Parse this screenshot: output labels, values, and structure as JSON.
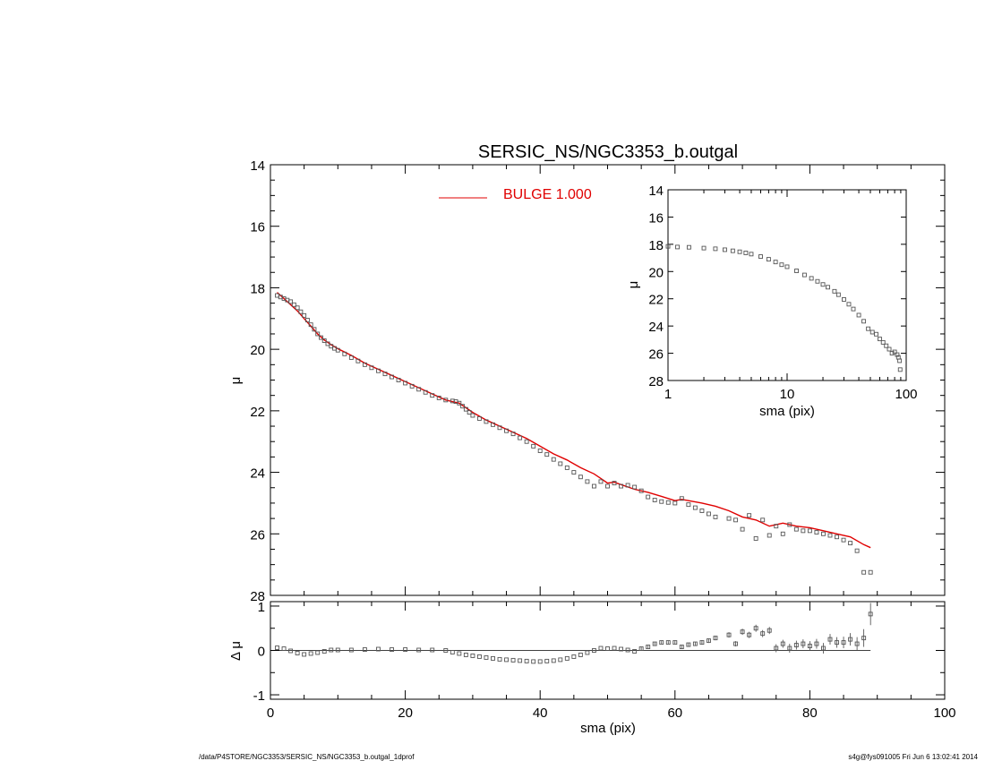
{
  "footer": {
    "path": "/data/P4STORE/NGC3353/SERSIC_NS/NGC3353_b.outgal_1dprof",
    "stamp": "s4g@fys091005  Fri Jun  6 13:02:41 2014"
  },
  "chart_data": [
    {
      "id": "main",
      "type": "scatter",
      "title": "SERSIC_NS/NGC3353_b.outgal",
      "xlabel": "",
      "ylabel": "μ",
      "xlim": [
        0,
        100
      ],
      "ylim": [
        28,
        14
      ],
      "yticks": [
        "14",
        "16",
        "18",
        "20",
        "22",
        "24",
        "26",
        "28"
      ],
      "legend": {
        "entries": [
          "BULGE  1.000"
        ],
        "placement": "top-center"
      },
      "colors": {
        "data": "#555555",
        "model": "#e00000"
      },
      "series": [
        {
          "name": "data",
          "style": "square-markers",
          "x": [
            1,
            1.5,
            2,
            2.5,
            3,
            3.5,
            4,
            4.5,
            5,
            5.5,
            6,
            6.5,
            7,
            7.5,
            8,
            8.5,
            9,
            9.5,
            10,
            11,
            12,
            13,
            14,
            15,
            16,
            17,
            18,
            19,
            20,
            21,
            22,
            23,
            24,
            25,
            26,
            27,
            27.5,
            28,
            28.5,
            29,
            29.5,
            30,
            31,
            32,
            33,
            34,
            35,
            36,
            37,
            38,
            39,
            40,
            41,
            42,
            43,
            44,
            45,
            46,
            47,
            48,
            49,
            50,
            51,
            52,
            53,
            54,
            55,
            56,
            57,
            58,
            59,
            60,
            61,
            62,
            63,
            64,
            65,
            66,
            68,
            69,
            70,
            71,
            72,
            73,
            74,
            75,
            76,
            77,
            78,
            79,
            80,
            81,
            82,
            83,
            84,
            85,
            86,
            87,
            88,
            89
          ],
          "y": [
            18.25,
            18.3,
            18.35,
            18.4,
            18.45,
            18.55,
            18.65,
            18.78,
            18.9,
            19.05,
            19.2,
            19.35,
            19.5,
            19.62,
            19.72,
            19.82,
            19.9,
            19.97,
            20.03,
            20.15,
            20.27,
            20.38,
            20.5,
            20.6,
            20.7,
            20.8,
            20.9,
            21.0,
            21.1,
            21.2,
            21.3,
            21.4,
            21.5,
            21.58,
            21.65,
            21.68,
            21.7,
            21.75,
            21.85,
            21.95,
            22.05,
            22.15,
            22.25,
            22.35,
            22.45,
            22.55,
            22.65,
            22.75,
            22.88,
            23.0,
            23.15,
            23.3,
            23.42,
            23.58,
            23.72,
            23.85,
            24.0,
            24.15,
            24.3,
            24.45,
            24.3,
            24.45,
            24.35,
            24.45,
            24.42,
            24.48,
            24.6,
            24.8,
            24.9,
            24.95,
            24.98,
            25.0,
            24.85,
            25.05,
            25.15,
            25.25,
            25.35,
            25.45,
            25.5,
            25.55,
            25.85,
            25.4,
            26.15,
            25.55,
            26.05,
            25.75,
            26.0,
            25.7,
            25.85,
            25.9,
            25.9,
            25.95,
            26.0,
            26.05,
            26.1,
            26.2,
            26.3,
            26.55,
            27.25,
            27.25
          ]
        },
        {
          "name": "BULGE  1.000",
          "style": "line",
          "x": [
            1,
            2,
            3,
            4,
            5,
            6,
            7,
            8,
            9,
            10,
            12,
            14,
            16,
            18,
            20,
            22,
            24,
            26,
            28,
            30,
            32,
            34,
            36,
            38,
            40,
            42,
            44,
            46,
            48,
            49,
            50,
            51,
            52,
            54,
            56,
            58,
            60,
            61,
            62,
            64,
            66,
            68,
            70,
            72,
            74,
            76,
            78,
            80,
            82,
            84,
            86,
            88,
            89
          ],
          "y": [
            18.15,
            18.35,
            18.55,
            18.75,
            19.0,
            19.25,
            19.5,
            19.7,
            19.85,
            19.98,
            20.2,
            20.45,
            20.65,
            20.85,
            21.05,
            21.25,
            21.45,
            21.65,
            21.75,
            22.05,
            22.3,
            22.5,
            22.7,
            22.9,
            23.15,
            23.4,
            23.6,
            23.85,
            24.05,
            24.2,
            24.35,
            24.32,
            24.4,
            24.55,
            24.65,
            24.78,
            24.92,
            24.88,
            24.92,
            25.0,
            25.1,
            25.25,
            25.45,
            25.55,
            25.75,
            25.65,
            25.75,
            25.8,
            25.9,
            26.0,
            26.1,
            26.35,
            26.45
          ]
        }
      ]
    },
    {
      "id": "residual",
      "type": "scatter",
      "xlabel": "sma (pix)",
      "ylabel": "Δ μ",
      "xlim": [
        0,
        100
      ],
      "ylim": [
        -1.1,
        1.1
      ],
      "xticks": [
        "0",
        "20",
        "40",
        "60",
        "80",
        "100"
      ],
      "yticks": [
        "1",
        "0",
        "-1"
      ],
      "reference_line": 0,
      "series": [
        {
          "name": "residual",
          "style": "square-markers-with-errorbars",
          "x": [
            1,
            2,
            3,
            4,
            5,
            6,
            7,
            8,
            9,
            10,
            12,
            14,
            16,
            18,
            20,
            22,
            24,
            26,
            27,
            28,
            29,
            30,
            31,
            32,
            33,
            34,
            35,
            36,
            37,
            38,
            39,
            40,
            41,
            42,
            43,
            44,
            45,
            46,
            47,
            48,
            49,
            50,
            51,
            52,
            53,
            54,
            55,
            56,
            57,
            58,
            59,
            60,
            61,
            62,
            63,
            64,
            65,
            66,
            68,
            69,
            70,
            71,
            72,
            73,
            74,
            75,
            76,
            77,
            78,
            79,
            80,
            81,
            82,
            83,
            84,
            85,
            86,
            87,
            88,
            89
          ],
          "y": [
            0.06,
            0.04,
            -0.01,
            -0.06,
            -0.09,
            -0.07,
            -0.05,
            -0.02,
            0.01,
            0.01,
            0.01,
            0.02,
            0.03,
            0.02,
            0.02,
            0.01,
            0.01,
            0.0,
            -0.04,
            -0.07,
            -0.1,
            -0.12,
            -0.14,
            -0.16,
            -0.18,
            -0.2,
            -0.21,
            -0.22,
            -0.23,
            -0.24,
            -0.25,
            -0.25,
            -0.24,
            -0.23,
            -0.21,
            -0.18,
            -0.14,
            -0.1,
            -0.05,
            0.0,
            0.05,
            0.04,
            0.05,
            0.03,
            0.01,
            -0.02,
            0.04,
            0.08,
            0.15,
            0.18,
            0.18,
            0.18,
            0.08,
            0.13,
            0.15,
            0.18,
            0.22,
            0.28,
            0.35,
            0.15,
            0.42,
            0.35,
            0.5,
            0.38,
            0.45,
            0.05,
            0.15,
            0.05,
            0.12,
            0.15,
            0.1,
            0.15,
            0.05,
            0.25,
            0.18,
            0.18,
            0.25,
            0.15,
            0.28,
            0.82
          ],
          "err": [
            0.01,
            0.01,
            0.01,
            0.01,
            0.01,
            0.01,
            0.01,
            0.01,
            0.01,
            0.01,
            0.01,
            0.01,
            0.01,
            0.01,
            0.01,
            0.01,
            0.01,
            0.01,
            0.01,
            0.01,
            0.01,
            0.01,
            0.01,
            0.01,
            0.01,
            0.01,
            0.01,
            0.01,
            0.01,
            0.01,
            0.01,
            0.01,
            0.01,
            0.01,
            0.01,
            0.01,
            0.01,
            0.01,
            0.01,
            0.02,
            0.02,
            0.02,
            0.02,
            0.02,
            0.02,
            0.02,
            0.03,
            0.03,
            0.03,
            0.03,
            0.03,
            0.03,
            0.04,
            0.04,
            0.04,
            0.05,
            0.05,
            0.05,
            0.06,
            0.06,
            0.07,
            0.07,
            0.08,
            0.08,
            0.08,
            0.09,
            0.09,
            0.1,
            0.1,
            0.1,
            0.11,
            0.11,
            0.12,
            0.12,
            0.12,
            0.13,
            0.14,
            0.15,
            0.2,
            0.25
          ]
        }
      ]
    },
    {
      "id": "inset",
      "type": "scatter",
      "xlabel": "sma (pix)",
      "ylabel": "μ",
      "xscale": "log",
      "xlim": [
        1,
        100
      ],
      "ylim": [
        28,
        14
      ],
      "xticks": [
        "1",
        "10",
        "100"
      ],
      "yticks": [
        "14",
        "16",
        "18",
        "20",
        "22",
        "24",
        "26",
        "28"
      ],
      "series": [
        {
          "name": "data",
          "style": "square-markers",
          "x": [
            1,
            1.2,
            1.5,
            2,
            2.5,
            3,
            3.5,
            4,
            4.5,
            5,
            6,
            7,
            8,
            9,
            10,
            12,
            14,
            16,
            18,
            20,
            22,
            25,
            27,
            30,
            33,
            36,
            40,
            44,
            48,
            52,
            56,
            60,
            64,
            68,
            72,
            76,
            80,
            84,
            86,
            88,
            89
          ],
          "y": [
            18.15,
            18.2,
            18.22,
            18.28,
            18.33,
            18.4,
            18.48,
            18.55,
            18.63,
            18.72,
            18.9,
            19.1,
            19.3,
            19.5,
            19.65,
            19.95,
            20.25,
            20.5,
            20.72,
            20.95,
            21.15,
            21.45,
            21.7,
            22.05,
            22.4,
            22.75,
            23.2,
            23.65,
            24.2,
            24.45,
            24.6,
            24.95,
            25.2,
            25.45,
            25.7,
            26.0,
            25.9,
            26.1,
            26.3,
            26.55,
            27.2
          ]
        }
      ]
    }
  ]
}
